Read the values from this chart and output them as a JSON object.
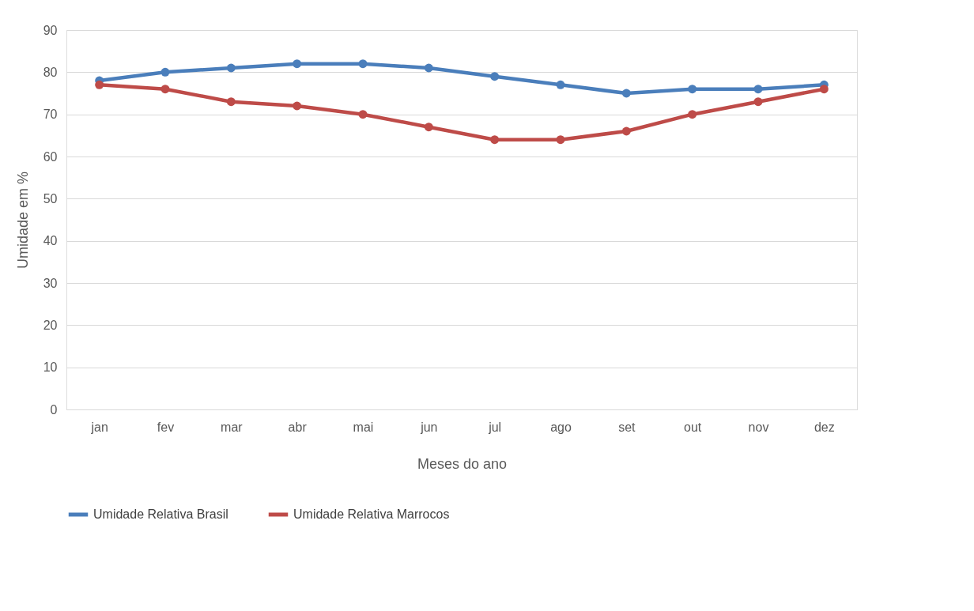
{
  "chart_data": {
    "type": "line",
    "xlabel": "Meses do ano",
    "ylabel": "Umidade em %",
    "categories": [
      "jan",
      "fev",
      "mar",
      "abr",
      "mai",
      "jun",
      "jul",
      "ago",
      "set",
      "out",
      "nov",
      "dez"
    ],
    "series": [
      {
        "name": "Umidade Relativa Brasil",
        "color": "#4a7ebb",
        "values": [
          78,
          80,
          81,
          82,
          82,
          81,
          79,
          77,
          75,
          76,
          76,
          77
        ]
      },
      {
        "name": "Umidade Relativa Marrocos",
        "color": "#be4b48",
        "values": [
          77,
          76,
          73,
          72,
          70,
          67,
          64,
          64,
          66,
          70,
          73,
          76
        ]
      }
    ],
    "ylim": [
      0,
      90
    ],
    "yticks": [
      0,
      10,
      20,
      30,
      40,
      50,
      60,
      70,
      80,
      90
    ],
    "grid": "y",
    "legend": "bottom",
    "marker": "circle",
    "line_style": "solid"
  }
}
